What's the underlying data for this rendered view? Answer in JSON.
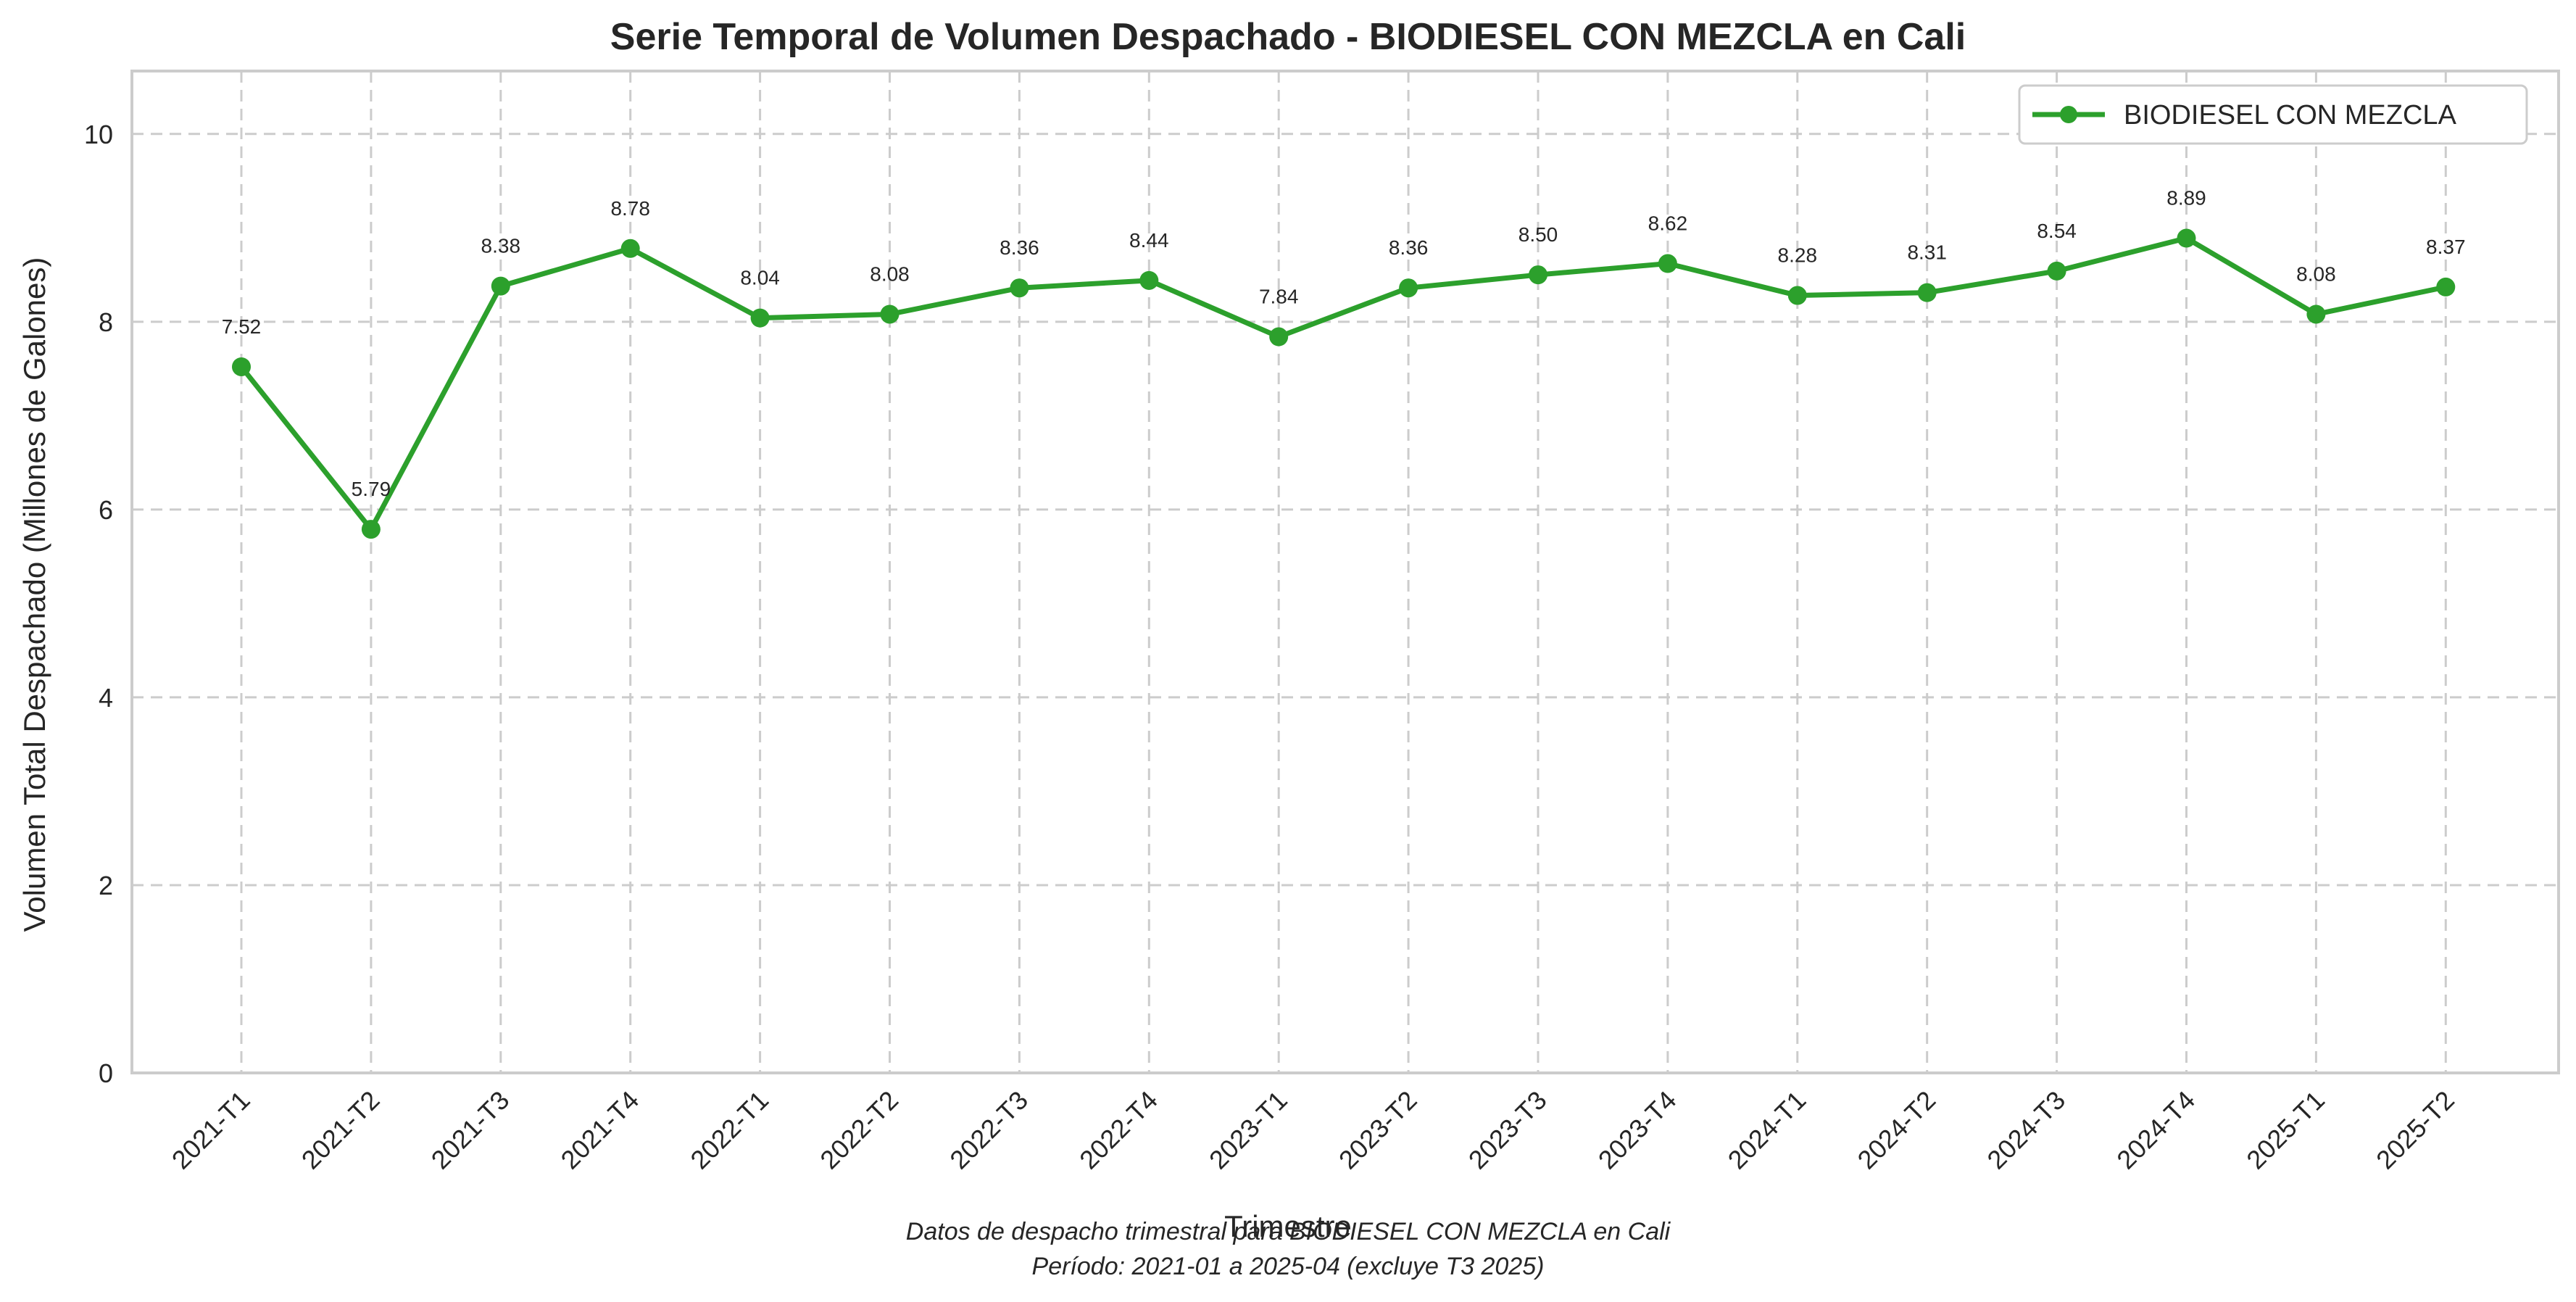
{
  "chart_data": {
    "type": "line",
    "title": "Serie Temporal de Volumen Despachado - BIODIESEL CON MEZCLA en Cali",
    "xlabel": "Trimestre",
    "ylabel": "Volumen Total Despachado (Millones de Galones)",
    "categories": [
      "2021-T1",
      "2021-T2",
      "2021-T3",
      "2021-T4",
      "2022-T1",
      "2022-T2",
      "2022-T3",
      "2022-T4",
      "2023-T1",
      "2023-T2",
      "2023-T3",
      "2023-T4",
      "2024-T1",
      "2024-T2",
      "2024-T3",
      "2024-T4",
      "2025-T1",
      "2025-T2"
    ],
    "series": [
      {
        "name": "BIODIESEL CON MEZCLA",
        "color": "#2ca02c",
        "values": [
          7.52,
          5.79,
          8.38,
          8.78,
          8.04,
          8.08,
          8.36,
          8.44,
          7.84,
          8.36,
          8.5,
          8.62,
          8.28,
          8.31,
          8.54,
          8.89,
          8.08,
          8.37
        ],
        "value_labels": [
          "7.52",
          "5.79",
          "8.38",
          "8.78",
          "8.04",
          "8.08",
          "8.36",
          "8.44",
          "7.84",
          "8.36",
          "8.50",
          "8.62",
          "8.28",
          "8.31",
          "8.54",
          "8.89",
          "8.08",
          "8.37"
        ]
      }
    ],
    "ylim": [
      0,
      10.67
    ],
    "yticks": [
      0,
      2,
      4,
      6,
      8,
      10
    ],
    "ytick_labels": [
      "0",
      "2",
      "4",
      "6",
      "8",
      "10"
    ],
    "grid": true,
    "legend_position": "top-right"
  },
  "caption": {
    "line1": "Datos de despacho trimestral para BIODIESEL CON MEZCLA en Cali",
    "line2": "Período: 2021-01 a 2025-04 (excluye T3 2025)"
  }
}
